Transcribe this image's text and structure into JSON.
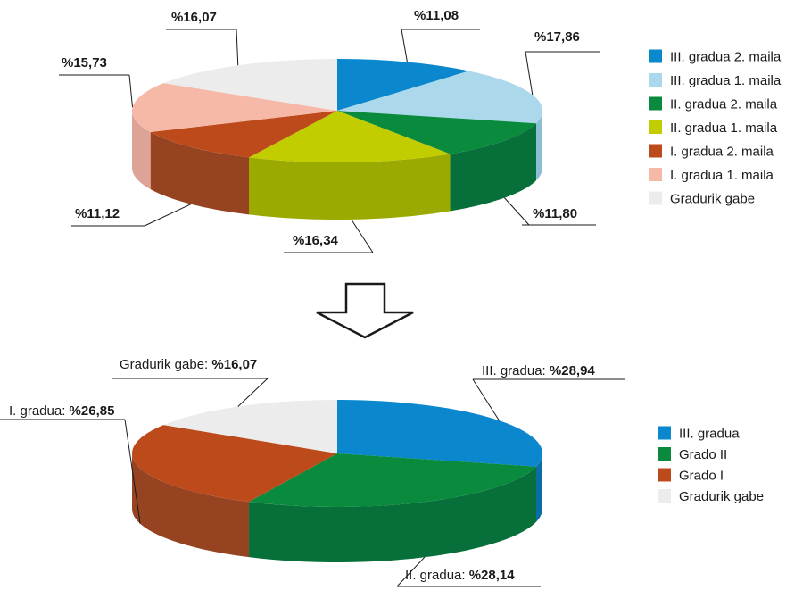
{
  "charts": [
    {
      "type": "pie",
      "title": "",
      "slices": [
        {
          "label": "III. gradua 2. maila",
          "value": 11.08,
          "value_label": "%11,08",
          "color": "#0a87cd",
          "side": "#0a6ea6"
        },
        {
          "label": "III. gradua 1. maila",
          "value": 17.86,
          "value_label": "%17,86",
          "color": "#acd8ec",
          "side": "#8cbfd6"
        },
        {
          "label": "II. gradua 2. maila",
          "value": 11.8,
          "value_label": "%11,80",
          "color": "#0a8a3c",
          "side": "#07703a"
        },
        {
          "label": "II. gradua 1. maila",
          "value": 16.34,
          "value_label": "%16,34",
          "color": "#c2cd00",
          "side": "#9aaa00"
        },
        {
          "label": "I. gradua 2. maila",
          "value": 11.12,
          "value_label": "%11,12",
          "color": "#bd4a1b",
          "side": "#954321"
        },
        {
          "label": "I. gradua 1. maila",
          "value": 15.73,
          "value_label": "%15,73",
          "color": "#f6b9a8",
          "side": "#dca396"
        },
        {
          "label": "Gradurik gabe",
          "value": 16.07,
          "value_label": "%16,07",
          "color": "#ececec",
          "side": "#d4d4d4"
        }
      ]
    },
    {
      "type": "pie",
      "title": "",
      "slices": [
        {
          "label": "III. gradua",
          "value": 28.94,
          "prefix": "III. gradua: ",
          "value_label": "%28,94",
          "color": "#0a87cd",
          "side": "#0a6ea6"
        },
        {
          "label": "Grado II",
          "value": 28.14,
          "prefix": "II. gradua: ",
          "value_label": "%28,14",
          "color": "#0a8a3c",
          "side": "#07703a"
        },
        {
          "label": "Grado I",
          "value": 26.85,
          "prefix": "I. gradua: ",
          "value_label": "%26,85",
          "color": "#bd4a1b",
          "side": "#954321"
        },
        {
          "label": "Gradurik gabe",
          "value": 16.07,
          "prefix": "Gradurik gabe: ",
          "value_label": "%16,07",
          "color": "#ececec",
          "side": "#d4d4d4"
        }
      ]
    }
  ],
  "arrow_icon": "down-arrow-icon"
}
